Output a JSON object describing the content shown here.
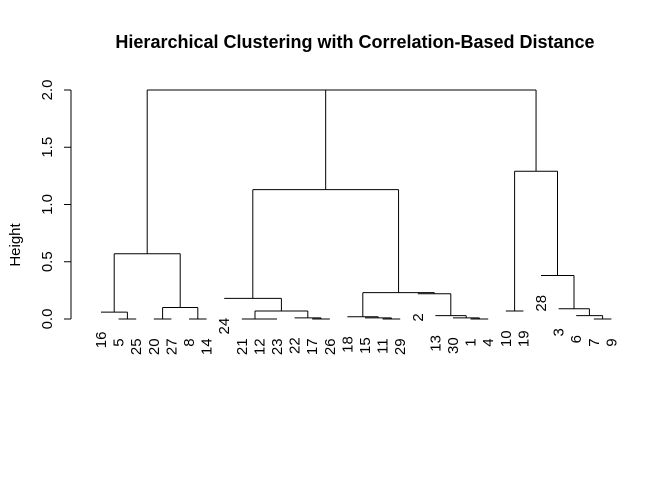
{
  "chart_data": {
    "type": "dendrogram",
    "title": "Hierarchical Clustering with Correlation-Based Distance",
    "xlabel": "",
    "ylabel": "Height",
    "ylim": [
      0,
      2
    ],
    "yticks": [
      0.0,
      0.5,
      1.0,
      1.5,
      2.0
    ],
    "ytick_labels": [
      "0.0",
      "0.5",
      "1.0",
      "1.5",
      "2.0"
    ],
    "leaf_order": [
      16,
      5,
      25,
      20,
      27,
      8,
      14,
      24,
      21,
      12,
      23,
      22,
      17,
      26,
      18,
      15,
      11,
      29,
      2,
      13,
      30,
      1,
      4,
      10,
      19,
      28,
      3,
      6,
      7,
      9
    ],
    "merges": [
      {
        "left": 12,
        "right": 23,
        "height": 0.0
      },
      {
        "left": 1,
        "right": 4,
        "height": 0.0
      },
      {
        "left": 11,
        "right": 29,
        "height": 0.0
      },
      {
        "left": 7,
        "right": 9,
        "height": 0.0
      },
      {
        "left": 17,
        "right": 26,
        "height": 0.0
      },
      {
        "left": 5,
        "right": 25,
        "height": 0.0
      },
      {
        "left": 20,
        "right": 27,
        "height": 0.0
      },
      {
        "left": 8,
        "right": 14,
        "height": 0.0
      },
      {
        "left": 30,
        "right": "(1,4)",
        "height": 0.01
      },
      {
        "left": 21,
        "right": "(12,23)",
        "height": 0.0
      },
      {
        "left": 15,
        "right": "(11,29)",
        "height": 0.01
      },
      {
        "left": 22,
        "right": "(17,26)",
        "height": 0.01
      },
      {
        "left": 18,
        "right": "(15,(11,29))",
        "height": 0.02
      },
      {
        "left": 6,
        "right": "(7,9)",
        "height": 0.03
      },
      {
        "left": 13,
        "right": "(30,(1,4))",
        "height": 0.03
      },
      {
        "left": 16,
        "right": "(5,25)",
        "height": 0.06
      },
      {
        "left": "(21,(12,23))",
        "right": "(22,(17,26))",
        "height": 0.07
      },
      {
        "left": 10,
        "right": 19,
        "height": 0.07
      },
      {
        "left": 3,
        "right": "(6,(7,9))",
        "height": 0.09
      },
      {
        "left": "(20,27)",
        "right": "(8,14)",
        "height": 0.1
      },
      {
        "left": 24,
        "right": "((21,(12,23)),(22,(17,26)))",
        "height": 0.18
      },
      {
        "left": 2,
        "right": "(13,(30,(1,4)))",
        "height": 0.22
      },
      {
        "left": "(18,(15,(11,29)))",
        "right": "(2,(13,(30,(1,4))))",
        "height": 0.23
      },
      {
        "left": 28,
        "right": "(3,(6,(7,9)))",
        "height": 0.38
      },
      {
        "left": "(16,(5,25))",
        "right": "((20,27),(8,14))",
        "height": 0.57
      },
      {
        "left": "(24,...)",
        "right": "((18,...),(2,...))",
        "height": 1.13
      },
      {
        "left": "(10,19)",
        "right": "(28,(3,(6,(7,9))))",
        "height": 1.29
      },
      {
        "left": "(24,...)+(18,...)+(2,...)",
        "right": "(10,19)+(28,...)",
        "height": 2.0
      },
      {
        "left": "(16,...)+(20,...)",
        "right": "rest",
        "height": 2.0
      }
    ]
  }
}
